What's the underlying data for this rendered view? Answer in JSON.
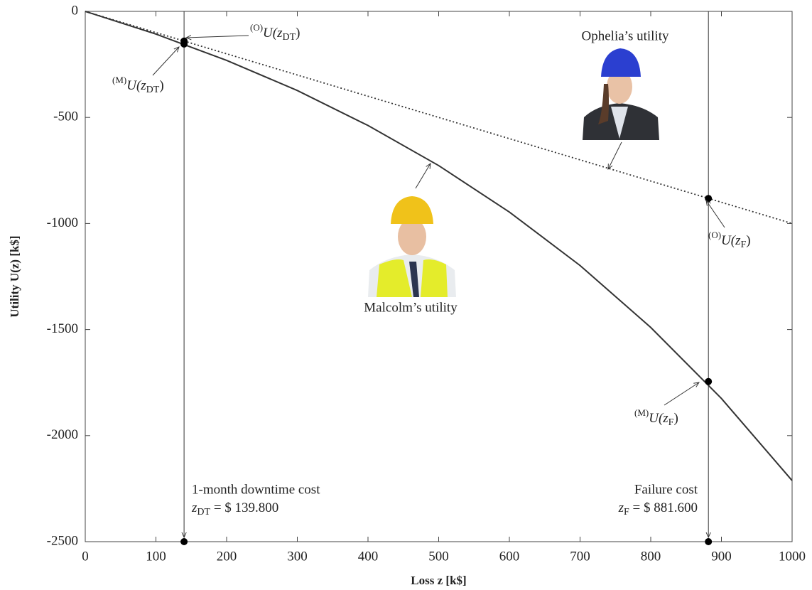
{
  "chart_data": {
    "type": "line",
    "xlabel": "Loss z  [k$]",
    "ylabel": "Utility U(z)  [k$]",
    "xlim": [
      0,
      1000
    ],
    "ylim": [
      -2500,
      0
    ],
    "xticks": [
      0,
      100,
      200,
      300,
      400,
      500,
      600,
      700,
      800,
      900,
      1000
    ],
    "yticks": [
      0,
      -500,
      -1000,
      -1500,
      -2000,
      -2500
    ],
    "series": [
      {
        "name": "Malcolm’s utility",
        "color": "#333333",
        "style": "solid",
        "x": [
          0,
          100,
          200,
          300,
          400,
          500,
          600,
          700,
          800,
          900,
          1000
        ],
        "values": [
          0,
          -107,
          -231,
          -373,
          -538,
          -727,
          -946,
          -1198,
          -1490,
          -1825,
          -2212
        ]
      },
      {
        "name": "Ophelia’s utility",
        "color": "#333333",
        "style": "dotted",
        "x": [
          0,
          1000
        ],
        "values": [
          0,
          -1000
        ]
      }
    ],
    "points": {
      "x": [
        139.8,
        139.8,
        881.6,
        881.6,
        139.8,
        881.6
      ],
      "y": [
        -140,
        -154,
        -882,
        -1745,
        -2500,
        -2500
      ]
    },
    "point_labels": [
      {
        "sup": "(O)",
        "pre": "U(z",
        "sub": "DT",
        "post": ")"
      },
      {
        "sup": "(M)",
        "pre": "U(z",
        "sub": "DT",
        "post": ")"
      },
      {
        "sup": "(O)",
        "pre": "U(z",
        "sub": "F",
        "post": ")"
      },
      {
        "sup": "(M)",
        "pre": "U(z",
        "sub": "F",
        "post": ")"
      }
    ],
    "cost_annotations": [
      {
        "title": "1-month downtime cost",
        "var": "z",
        "sub": "DT",
        "text": " = $ 139.800",
        "x": 139.8
      },
      {
        "title": "Failure cost",
        "var": "z",
        "sub": "F",
        "text": " = $ 881.600",
        "x": 881.6
      }
    ]
  }
}
